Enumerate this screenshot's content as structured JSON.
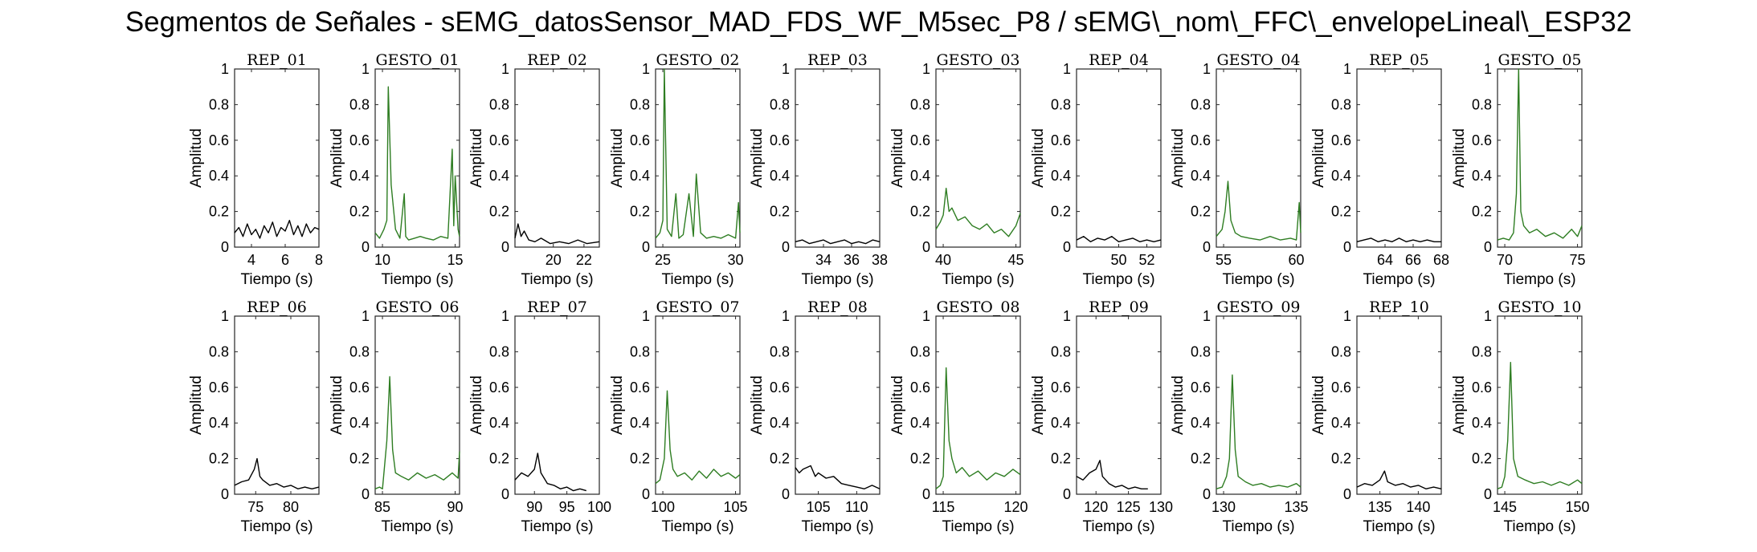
{
  "figure": {
    "title": "Segmentos de Señales - sEMG_datosSensor_MAD_FDS_WF_M5sec_P8 / sEMG\\_nom\\_FFC\\_envelopeLineal\\_ESP32"
  },
  "colors": {
    "rep": "#000000",
    "gesto": "#2e7d22",
    "axes": "#262626"
  },
  "chart_data": [
    {
      "type": "line",
      "title": "REP_01",
      "xlabel": "Tiempo (s)",
      "ylabel": "Amplitud",
      "xlim": [
        3,
        8
      ],
      "ylim": [
        0,
        1
      ],
      "xticks": [
        4,
        6,
        8
      ],
      "yticks": [
        0,
        0.2,
        0.4,
        0.6,
        0.8,
        1
      ],
      "color": "#000000",
      "x": [
        3.0,
        3.25,
        3.5,
        3.75,
        4.0,
        4.25,
        4.5,
        4.75,
        5.0,
        5.25,
        5.5,
        5.75,
        6.0,
        6.25,
        6.5,
        6.75,
        7.0,
        7.25,
        7.5,
        7.75,
        8.0
      ],
      "y": [
        0.08,
        0.11,
        0.06,
        0.13,
        0.07,
        0.1,
        0.05,
        0.12,
        0.08,
        0.14,
        0.06,
        0.11,
        0.09,
        0.15,
        0.07,
        0.12,
        0.06,
        0.13,
        0.08,
        0.11,
        0.1
      ]
    },
    {
      "type": "line",
      "title": "GESTO_01",
      "xlabel": "Tiempo (s)",
      "ylabel": "Amplitud",
      "xlim": [
        9.5,
        15.3
      ],
      "ylim": [
        0,
        1
      ],
      "xticks": [
        10,
        15
      ],
      "yticks": [
        0,
        0.2,
        0.4,
        0.6,
        0.8,
        1
      ],
      "color": "#2e7d22",
      "x": [
        9.5,
        9.8,
        10.1,
        10.3,
        10.4,
        10.6,
        10.9,
        11.2,
        11.5,
        11.6,
        11.8,
        12.2,
        12.6,
        13.0,
        13.5,
        14.0,
        14.5,
        14.8,
        14.9,
        15.0,
        15.2,
        15.3
      ],
      "y": [
        0.08,
        0.05,
        0.1,
        0.15,
        0.9,
        0.35,
        0.1,
        0.05,
        0.3,
        0.06,
        0.04,
        0.05,
        0.06,
        0.05,
        0.04,
        0.06,
        0.05,
        0.55,
        0.12,
        0.4,
        0.1,
        0.06
      ]
    },
    {
      "type": "line",
      "title": "REP_02",
      "xlabel": "Tiempo (s)",
      "ylabel": "Amplitud",
      "xlim": [
        17.5,
        23
      ],
      "ylim": [
        0,
        1
      ],
      "xticks": [
        20,
        22
      ],
      "yticks": [
        0,
        0.2,
        0.4,
        0.6,
        0.8,
        1
      ],
      "color": "#000000",
      "x": [
        17.5,
        17.7,
        17.9,
        18.1,
        18.4,
        18.8,
        19.2,
        19.8,
        20.4,
        21.0,
        21.6,
        22.2,
        23.0
      ],
      "y": [
        0.05,
        0.13,
        0.06,
        0.09,
        0.04,
        0.03,
        0.05,
        0.02,
        0.03,
        0.02,
        0.04,
        0.02,
        0.03
      ]
    },
    {
      "type": "line",
      "title": "GESTO_02",
      "xlabel": "Tiempo (s)",
      "ylabel": "Amplitud",
      "xlim": [
        24.5,
        30.3
      ],
      "ylim": [
        0,
        1
      ],
      "xticks": [
        25,
        30
      ],
      "yticks": [
        0,
        0.2,
        0.4,
        0.6,
        0.8,
        1
      ],
      "color": "#2e7d22",
      "x": [
        24.5,
        24.8,
        25.0,
        25.1,
        25.3,
        25.6,
        25.9,
        26.1,
        26.4,
        26.8,
        27.1,
        27.3,
        27.6,
        28.0,
        28.5,
        29.0,
        29.5,
        30.0,
        30.2,
        30.3
      ],
      "y": [
        0.05,
        0.08,
        0.15,
        1.0,
        0.1,
        0.06,
        0.3,
        0.05,
        0.07,
        0.3,
        0.06,
        0.41,
        0.08,
        0.05,
        0.06,
        0.05,
        0.07,
        0.05,
        0.25,
        0.08
      ]
    },
    {
      "type": "line",
      "title": "REP_03",
      "xlabel": "Tiempo (s)",
      "ylabel": "Amplitud",
      "xlim": [
        32,
        38
      ],
      "ylim": [
        0,
        1
      ],
      "xticks": [
        34,
        36,
        38
      ],
      "yticks": [
        0,
        0.2,
        0.4,
        0.6,
        0.8,
        1
      ],
      "color": "#000000",
      "x": [
        32.0,
        32.5,
        33.0,
        33.5,
        34.0,
        34.5,
        35.0,
        35.5,
        36.0,
        36.5,
        37.0,
        37.5,
        38.0
      ],
      "y": [
        0.03,
        0.04,
        0.02,
        0.03,
        0.04,
        0.02,
        0.03,
        0.04,
        0.02,
        0.03,
        0.02,
        0.04,
        0.03
      ]
    },
    {
      "type": "line",
      "title": "GESTO_03",
      "xlabel": "Tiempo (s)",
      "ylabel": "Amplitud",
      "xlim": [
        39.5,
        45.3
      ],
      "ylim": [
        0,
        1
      ],
      "xticks": [
        40,
        45
      ],
      "yticks": [
        0,
        0.2,
        0.4,
        0.6,
        0.8,
        1
      ],
      "color": "#2e7d22",
      "x": [
        39.5,
        39.8,
        40.0,
        40.2,
        40.4,
        40.6,
        41.0,
        41.5,
        42.0,
        42.5,
        43.0,
        43.5,
        44.0,
        44.5,
        45.0,
        45.3
      ],
      "y": [
        0.1,
        0.14,
        0.18,
        0.33,
        0.2,
        0.22,
        0.15,
        0.17,
        0.12,
        0.1,
        0.13,
        0.08,
        0.1,
        0.06,
        0.12,
        0.19
      ]
    },
    {
      "type": "line",
      "title": "REP_04",
      "xlabel": "Tiempo (s)",
      "ylabel": "Amplitud",
      "xlim": [
        47,
        53
      ],
      "ylim": [
        0,
        1
      ],
      "xticks": [
        50,
        52
      ],
      "yticks": [
        0,
        0.2,
        0.4,
        0.6,
        0.8,
        1
      ],
      "color": "#000000",
      "x": [
        47.0,
        47.5,
        48.0,
        48.5,
        49.0,
        49.5,
        50.0,
        50.5,
        51.0,
        51.5,
        52.0,
        52.5,
        53.0
      ],
      "y": [
        0.04,
        0.06,
        0.03,
        0.05,
        0.04,
        0.06,
        0.03,
        0.04,
        0.05,
        0.03,
        0.04,
        0.03,
        0.04
      ]
    },
    {
      "type": "line",
      "title": "GESTO_04",
      "xlabel": "Tiempo (s)",
      "ylabel": "Amplitud",
      "xlim": [
        54.5,
        60.3
      ],
      "ylim": [
        0,
        1
      ],
      "xticks": [
        55,
        60
      ],
      "yticks": [
        0,
        0.2,
        0.4,
        0.6,
        0.8,
        1
      ],
      "color": "#2e7d22",
      "x": [
        54.5,
        54.9,
        55.1,
        55.3,
        55.5,
        55.8,
        56.2,
        56.8,
        57.5,
        58.2,
        58.9,
        59.6,
        60.0,
        60.2,
        60.3
      ],
      "y": [
        0.06,
        0.1,
        0.2,
        0.37,
        0.15,
        0.08,
        0.06,
        0.05,
        0.04,
        0.06,
        0.04,
        0.05,
        0.04,
        0.25,
        0.08
      ]
    },
    {
      "type": "line",
      "title": "REP_05",
      "xlabel": "Tiempo (s)",
      "ylabel": "Amplitud",
      "xlim": [
        62,
        68
      ],
      "ylim": [
        0,
        1
      ],
      "xticks": [
        64,
        66,
        68
      ],
      "yticks": [
        0,
        0.2,
        0.4,
        0.6,
        0.8,
        1
      ],
      "color": "#000000",
      "x": [
        62.0,
        62.5,
        63.0,
        63.5,
        64.0,
        64.5,
        65.0,
        65.5,
        66.0,
        66.5,
        67.0,
        67.5,
        68.0
      ],
      "y": [
        0.03,
        0.04,
        0.05,
        0.03,
        0.04,
        0.03,
        0.05,
        0.03,
        0.04,
        0.03,
        0.04,
        0.03,
        0.03
      ]
    },
    {
      "type": "line",
      "title": "GESTO_05",
      "xlabel": "Tiempo (s)",
      "ylabel": "Amplitud",
      "xlim": [
        69.5,
        75.3
      ],
      "ylim": [
        0,
        1
      ],
      "xticks": [
        70,
        75
      ],
      "yticks": [
        0,
        0.2,
        0.4,
        0.6,
        0.8,
        1
      ],
      "color": "#2e7d22",
      "x": [
        69.5,
        69.9,
        70.3,
        70.6,
        70.8,
        70.95,
        71.1,
        71.3,
        71.7,
        72.2,
        72.8,
        73.4,
        74.0,
        74.6,
        75.0,
        75.3
      ],
      "y": [
        0.04,
        0.05,
        0.04,
        0.08,
        0.3,
        1.0,
        0.2,
        0.12,
        0.08,
        0.1,
        0.06,
        0.08,
        0.05,
        0.1,
        0.06,
        0.12
      ]
    },
    {
      "type": "line",
      "title": "REP_06",
      "xlabel": "Tiempo (s)",
      "ylabel": "Amplitud",
      "xlim": [
        72,
        84
      ],
      "ylim": [
        0,
        1
      ],
      "xticks": [
        75,
        80
      ],
      "yticks": [
        0,
        0.2,
        0.4,
        0.6,
        0.8,
        1
      ],
      "color": "#000000",
      "x": [
        72.0,
        73.0,
        74.0,
        74.8,
        75.2,
        75.6,
        76.0,
        77.0,
        78.0,
        79.0,
        80.0,
        81.0,
        82.0,
        83.0,
        84.0
      ],
      "y": [
        0.05,
        0.07,
        0.08,
        0.14,
        0.2,
        0.1,
        0.08,
        0.05,
        0.06,
        0.04,
        0.05,
        0.03,
        0.04,
        0.03,
        0.04
      ]
    },
    {
      "type": "line",
      "title": "GESTO_06",
      "xlabel": "Tiempo (s)",
      "ylabel": "Amplitud",
      "xlim": [
        84.5,
        90.3
      ],
      "ylim": [
        0,
        1
      ],
      "xticks": [
        85,
        90
      ],
      "yticks": [
        0,
        0.2,
        0.4,
        0.6,
        0.8,
        1
      ],
      "color": "#2e7d22",
      "x": [
        84.5,
        84.8,
        85.0,
        85.3,
        85.5,
        85.7,
        85.9,
        86.3,
        86.8,
        87.4,
        88.0,
        88.6,
        89.2,
        89.8,
        90.2,
        90.3
      ],
      "y": [
        0.03,
        0.04,
        0.03,
        0.3,
        0.66,
        0.25,
        0.12,
        0.1,
        0.08,
        0.12,
        0.09,
        0.11,
        0.08,
        0.12,
        0.09,
        0.24
      ]
    },
    {
      "type": "line",
      "title": "REP_07",
      "xlabel": "Tiempo (s)",
      "ylabel": "Amplitud",
      "xlim": [
        87,
        100
      ],
      "ylim": [
        0,
        1
      ],
      "xticks": [
        90,
        95,
        100
      ],
      "yticks": [
        0,
        0.2,
        0.4,
        0.6,
        0.8,
        1
      ],
      "color": "#000000",
      "x": [
        87.0,
        88.0,
        89.0,
        90.0,
        90.5,
        91.0,
        92.0,
        93.0,
        94.0,
        95.0,
        96.0,
        97.0,
        98.0
      ],
      "y": [
        0.08,
        0.12,
        0.1,
        0.14,
        0.23,
        0.12,
        0.06,
        0.05,
        0.03,
        0.04,
        0.02,
        0.03,
        0.02
      ]
    },
    {
      "type": "line",
      "title": "GESTO_07",
      "xlabel": "Tiempo (s)",
      "ylabel": "Amplitud",
      "xlim": [
        99.5,
        105.3
      ],
      "ylim": [
        0,
        1
      ],
      "xticks": [
        100,
        105
      ],
      "yticks": [
        0,
        0.2,
        0.4,
        0.6,
        0.8,
        1
      ],
      "color": "#2e7d22",
      "x": [
        99.5,
        99.8,
        100.1,
        100.3,
        100.5,
        100.7,
        101.0,
        101.5,
        102.0,
        102.5,
        103.0,
        103.5,
        104.0,
        104.5,
        105.0,
        105.3
      ],
      "y": [
        0.06,
        0.08,
        0.2,
        0.58,
        0.25,
        0.14,
        0.1,
        0.12,
        0.08,
        0.13,
        0.09,
        0.14,
        0.1,
        0.12,
        0.09,
        0.11
      ]
    },
    {
      "type": "line",
      "title": "REP_08",
      "xlabel": "Tiempo (s)",
      "ylabel": "Amplitud",
      "xlim": [
        102,
        113
      ],
      "ylim": [
        0,
        1
      ],
      "xticks": [
        105,
        110
      ],
      "yticks": [
        0,
        0.2,
        0.4,
        0.6,
        0.8,
        1
      ],
      "color": "#000000",
      "x": [
        102.0,
        102.5,
        103.0,
        104.0,
        104.6,
        105.0,
        106.0,
        107.0,
        108.0,
        109.0,
        110.0,
        111.0,
        112.0,
        113.0
      ],
      "y": [
        0.15,
        0.12,
        0.14,
        0.16,
        0.1,
        0.12,
        0.09,
        0.1,
        0.06,
        0.05,
        0.04,
        0.03,
        0.05,
        0.03
      ]
    },
    {
      "type": "line",
      "title": "GESTO_08",
      "xlabel": "Tiempo (s)",
      "ylabel": "Amplitud",
      "xlim": [
        114.5,
        120.3
      ],
      "ylim": [
        0,
        1
      ],
      "xticks": [
        115,
        120
      ],
      "yticks": [
        0,
        0.2,
        0.4,
        0.6,
        0.8,
        1
      ],
      "color": "#2e7d22",
      "x": [
        114.5,
        114.8,
        115.0,
        115.2,
        115.4,
        115.6,
        115.9,
        116.3,
        116.8,
        117.4,
        118.0,
        118.6,
        119.2,
        119.8,
        120.3
      ],
      "y": [
        0.03,
        0.05,
        0.1,
        0.71,
        0.3,
        0.2,
        0.12,
        0.15,
        0.1,
        0.13,
        0.08,
        0.12,
        0.1,
        0.14,
        0.11
      ]
    },
    {
      "type": "line",
      "title": "REP_09",
      "xlabel": "Tiempo (s)",
      "ylabel": "Amplitud",
      "xlim": [
        117,
        130
      ],
      "ylim": [
        0,
        1
      ],
      "xticks": [
        120,
        125,
        130
      ],
      "yticks": [
        0,
        0.2,
        0.4,
        0.6,
        0.8,
        1
      ],
      "color": "#000000",
      "x": [
        117.0,
        118.0,
        119.0,
        120.0,
        120.6,
        121.0,
        122.0,
        123.0,
        124.0,
        125.0,
        126.0,
        127.0,
        128.0
      ],
      "y": [
        0.1,
        0.08,
        0.12,
        0.14,
        0.19,
        0.1,
        0.06,
        0.04,
        0.05,
        0.03,
        0.04,
        0.03,
        0.03
      ]
    },
    {
      "type": "line",
      "title": "GESTO_09",
      "xlabel": "Tiempo (s)",
      "ylabel": "Amplitud",
      "xlim": [
        129.5,
        135.3
      ],
      "ylim": [
        0,
        1
      ],
      "xticks": [
        130,
        135
      ],
      "yticks": [
        0,
        0.2,
        0.4,
        0.6,
        0.8,
        1
      ],
      "color": "#2e7d22",
      "x": [
        129.5,
        129.9,
        130.2,
        130.4,
        130.6,
        130.8,
        131.0,
        131.5,
        132.0,
        132.6,
        133.2,
        133.8,
        134.4,
        135.0,
        135.3
      ],
      "y": [
        0.03,
        0.04,
        0.1,
        0.2,
        0.67,
        0.25,
        0.1,
        0.07,
        0.05,
        0.06,
        0.04,
        0.05,
        0.04,
        0.06,
        0.04
      ]
    },
    {
      "type": "line",
      "title": "REP_10",
      "xlabel": "Tiempo (s)",
      "ylabel": "Amplitud",
      "xlim": [
        132,
        143
      ],
      "ylim": [
        0,
        1
      ],
      "xticks": [
        135,
        140
      ],
      "yticks": [
        0,
        0.2,
        0.4,
        0.6,
        0.8,
        1
      ],
      "color": "#000000",
      "x": [
        132.0,
        133.0,
        134.0,
        135.0,
        135.6,
        136.0,
        137.0,
        138.0,
        139.0,
        140.0,
        141.0,
        142.0,
        143.0
      ],
      "y": [
        0.04,
        0.06,
        0.05,
        0.08,
        0.13,
        0.07,
        0.05,
        0.06,
        0.04,
        0.05,
        0.03,
        0.04,
        0.03
      ]
    },
    {
      "type": "line",
      "title": "GESTO_10",
      "xlabel": "Tiempo (s)",
      "ylabel": "Amplitud",
      "xlim": [
        144.5,
        150.3
      ],
      "ylim": [
        0,
        1
      ],
      "xticks": [
        145,
        150
      ],
      "yticks": [
        0,
        0.2,
        0.4,
        0.6,
        0.8,
        1
      ],
      "color": "#2e7d22",
      "x": [
        144.5,
        144.8,
        145.0,
        145.2,
        145.4,
        145.6,
        145.9,
        146.4,
        147.0,
        147.6,
        148.2,
        148.8,
        149.4,
        150.0,
        150.3
      ],
      "y": [
        0.03,
        0.04,
        0.1,
        0.3,
        0.74,
        0.2,
        0.1,
        0.08,
        0.06,
        0.07,
        0.05,
        0.07,
        0.05,
        0.08,
        0.06
      ]
    }
  ]
}
